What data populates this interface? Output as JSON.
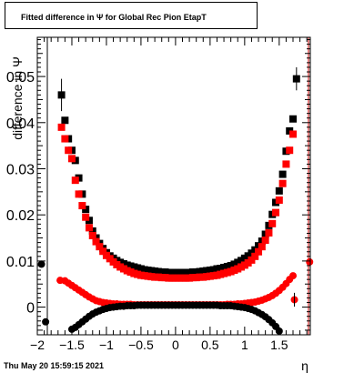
{
  "title": "Fitted difference in  Ψ  for Global Rec Pion EtapT",
  "timestamp": "Thu May 20 15:59:15 2021",
  "colors": {
    "black_series": "#000000",
    "red_series": "#ff0000",
    "right_line": "#cc0000"
  },
  "chart_data": {
    "type": "scatter",
    "title": "Fitted difference in  Ψ  for Global Rec Pion EtapT",
    "xlabel": "η",
    "ylabel": "difference in  Ψ",
    "xlim": [
      -2.0,
      1.95
    ],
    "ylim": [
      -0.006,
      0.0585
    ],
    "x_ticks": [
      -2,
      -1.5,
      -1,
      -0.5,
      0,
      0.5,
      1,
      1.5
    ],
    "x_tick_labels": [
      "−2",
      "−1.5",
      "−1",
      "−0.5",
      "0",
      "0.5",
      "1",
      "1.5"
    ],
    "y_ticks": [
      0,
      0.01,
      0.02,
      0.03,
      0.04,
      0.05
    ],
    "y_tick_labels": [
      "0",
      "0.01",
      "0.02",
      "0.03",
      "0.04",
      "0.05"
    ],
    "legend": "none",
    "series": [
      {
        "color": "#000000",
        "marker": "square",
        "points": [
          [
            -1.65,
            0.046
          ],
          [
            -1.6,
            0.0405
          ],
          [
            -1.55,
            0.0365
          ],
          [
            -1.5,
            0.034
          ],
          [
            -1.45,
            0.0318
          ],
          [
            -1.4,
            0.028
          ],
          [
            -1.35,
            0.0245
          ],
          [
            -1.3,
            0.0212
          ],
          [
            -1.25,
            0.0188
          ],
          [
            -1.2,
            0.0165
          ],
          [
            -1.15,
            0.015
          ],
          [
            -1.1,
            0.0138
          ],
          [
            -1.05,
            0.0127
          ],
          [
            -1.0,
            0.0118
          ],
          [
            -0.95,
            0.0111
          ],
          [
            -0.9,
            0.0106
          ],
          [
            -0.85,
            0.0101
          ],
          [
            -0.8,
            0.0097
          ],
          [
            -0.75,
            0.0094
          ],
          [
            -0.7,
            0.0091
          ],
          [
            -0.65,
            0.0089
          ],
          [
            -0.6,
            0.0087
          ],
          [
            -0.55,
            0.0085
          ],
          [
            -0.5,
            0.0083
          ],
          [
            -0.45,
            0.0081
          ],
          [
            -0.4,
            0.008
          ],
          [
            -0.35,
            0.0079
          ],
          [
            -0.3,
            0.0078
          ],
          [
            -0.25,
            0.0077
          ],
          [
            -0.2,
            0.0076
          ],
          [
            -0.15,
            0.0076
          ],
          [
            -0.1,
            0.0075
          ],
          [
            -0.05,
            0.0075
          ],
          [
            0.0,
            0.0075
          ],
          [
            0.05,
            0.0075
          ],
          [
            0.1,
            0.0075
          ],
          [
            0.15,
            0.0075
          ],
          [
            0.2,
            0.0075
          ],
          [
            0.25,
            0.0076
          ],
          [
            0.3,
            0.0076
          ],
          [
            0.35,
            0.0077
          ],
          [
            0.4,
            0.0078
          ],
          [
            0.45,
            0.0079
          ],
          [
            0.5,
            0.008
          ],
          [
            0.55,
            0.0081
          ],
          [
            0.6,
            0.0083
          ],
          [
            0.65,
            0.0084
          ],
          [
            0.7,
            0.0086
          ],
          [
            0.75,
            0.0088
          ],
          [
            0.8,
            0.009
          ],
          [
            0.85,
            0.0093
          ],
          [
            0.9,
            0.0097
          ],
          [
            0.95,
            0.0101
          ],
          [
            1.0,
            0.0106
          ],
          [
            1.05,
            0.0111
          ],
          [
            1.1,
            0.0117
          ],
          [
            1.15,
            0.0124
          ],
          [
            1.2,
            0.0133
          ],
          [
            1.25,
            0.0143
          ],
          [
            1.3,
            0.0158
          ],
          [
            1.35,
            0.0177
          ],
          [
            1.4,
            0.0201
          ],
          [
            1.45,
            0.0227
          ],
          [
            1.5,
            0.0252
          ],
          [
            1.55,
            0.0288
          ],
          [
            1.6,
            0.0338
          ],
          [
            1.65,
            0.0382
          ],
          [
            1.7,
            0.0408
          ],
          [
            1.75,
            0.0495
          ]
        ]
      },
      {
        "color": "#ff0000",
        "marker": "square",
        "points": [
          [
            -1.65,
            0.039
          ],
          [
            -1.6,
            0.0365
          ],
          [
            -1.55,
            0.034
          ],
          [
            -1.5,
            0.0322
          ],
          [
            -1.45,
            0.0275
          ],
          [
            -1.4,
            0.0245
          ],
          [
            -1.35,
            0.022
          ],
          [
            -1.3,
            0.0195
          ],
          [
            -1.25,
            0.0172
          ],
          [
            -1.2,
            0.0155
          ],
          [
            -1.15,
            0.0142
          ],
          [
            -1.1,
            0.0131
          ],
          [
            -1.05,
            0.0121
          ],
          [
            -1.0,
            0.0112
          ],
          [
            -0.95,
            0.0105
          ],
          [
            -0.9,
            0.0098
          ],
          [
            -0.85,
            0.0092
          ],
          [
            -0.8,
            0.0087
          ],
          [
            -0.75,
            0.0083
          ],
          [
            -0.7,
            0.0079
          ],
          [
            -0.65,
            0.0076
          ],
          [
            -0.6,
            0.0073
          ],
          [
            -0.55,
            0.0071
          ],
          [
            -0.5,
            0.0069
          ],
          [
            -0.45,
            0.0068
          ],
          [
            -0.4,
            0.0067
          ],
          [
            -0.35,
            0.0066
          ],
          [
            -0.3,
            0.0065
          ],
          [
            -0.25,
            0.0065
          ],
          [
            -0.2,
            0.0064
          ],
          [
            -0.15,
            0.0064
          ],
          [
            -0.1,
            0.0063
          ],
          [
            -0.05,
            0.0063
          ],
          [
            0.0,
            0.0063
          ],
          [
            0.05,
            0.0063
          ],
          [
            0.1,
            0.0063
          ],
          [
            0.15,
            0.0063
          ],
          [
            0.2,
            0.0063
          ],
          [
            0.25,
            0.0064
          ],
          [
            0.3,
            0.0064
          ],
          [
            0.35,
            0.0065
          ],
          [
            0.4,
            0.0065
          ],
          [
            0.45,
            0.0066
          ],
          [
            0.5,
            0.0067
          ],
          [
            0.55,
            0.0068
          ],
          [
            0.6,
            0.0069
          ],
          [
            0.65,
            0.0071
          ],
          [
            0.7,
            0.0073
          ],
          [
            0.75,
            0.0075
          ],
          [
            0.8,
            0.0077
          ],
          [
            0.85,
            0.008
          ],
          [
            0.9,
            0.0083
          ],
          [
            0.95,
            0.0087
          ],
          [
            1.0,
            0.0091
          ],
          [
            1.05,
            0.0096
          ],
          [
            1.1,
            0.0102
          ],
          [
            1.15,
            0.011
          ],
          [
            1.2,
            0.012
          ],
          [
            1.25,
            0.0131
          ],
          [
            1.3,
            0.0145
          ],
          [
            1.35,
            0.0161
          ],
          [
            1.4,
            0.0181
          ],
          [
            1.45,
            0.0205
          ],
          [
            1.5,
            0.0232
          ],
          [
            1.55,
            0.0268
          ],
          [
            1.6,
            0.031
          ],
          [
            1.65,
            0.034
          ],
          [
            1.7,
            0.0375
          ]
        ]
      },
      {
        "color": "#ff0000",
        "marker": "circle",
        "points": [
          [
            -1.67,
            0.0058
          ],
          [
            -1.6,
            0.0057
          ],
          [
            -1.55,
            0.0052
          ],
          [
            -1.5,
            0.0047
          ],
          [
            -1.45,
            0.0042
          ],
          [
            -1.4,
            0.0037
          ],
          [
            -1.35,
            0.0032
          ],
          [
            -1.3,
            0.0027
          ],
          [
            -1.25,
            0.0022
          ],
          [
            -1.2,
            0.0018
          ],
          [
            -1.15,
            0.0014
          ],
          [
            -1.1,
            0.0012
          ],
          [
            -1.05,
            0.001
          ],
          [
            -1.0,
            0.0009
          ],
          [
            -0.95,
            0.0008
          ],
          [
            -0.9,
            0.0007
          ],
          [
            -0.85,
            0.0007
          ],
          [
            -0.8,
            0.0006
          ],
          [
            -0.75,
            0.0006
          ],
          [
            -0.7,
            0.0006
          ],
          [
            -0.65,
            0.0006
          ],
          [
            -0.6,
            0.0005
          ],
          [
            -0.55,
            0.0005
          ],
          [
            -0.5,
            0.0005
          ],
          [
            -0.45,
            0.0005
          ],
          [
            -0.4,
            0.0005
          ],
          [
            -0.35,
            0.0005
          ],
          [
            -0.3,
            0.0005
          ],
          [
            -0.25,
            0.0005
          ],
          [
            -0.2,
            0.0005
          ],
          [
            -0.15,
            0.0005
          ],
          [
            -0.1,
            0.0005
          ],
          [
            -0.05,
            0.0005
          ],
          [
            0.0,
            0.0005
          ],
          [
            0.05,
            0.0005
          ],
          [
            0.1,
            0.0005
          ],
          [
            0.15,
            0.0005
          ],
          [
            0.2,
            0.0005
          ],
          [
            0.25,
            0.0005
          ],
          [
            0.3,
            0.0005
          ],
          [
            0.35,
            0.0005
          ],
          [
            0.4,
            0.0005
          ],
          [
            0.45,
            0.0005
          ],
          [
            0.5,
            0.0005
          ],
          [
            0.55,
            0.0005
          ],
          [
            0.6,
            0.0005
          ],
          [
            0.65,
            0.0005
          ],
          [
            0.7,
            0.0005
          ],
          [
            0.75,
            0.0006
          ],
          [
            0.8,
            0.0006
          ],
          [
            0.85,
            0.0006
          ],
          [
            0.9,
            0.0007
          ],
          [
            0.95,
            0.0007
          ],
          [
            1.0,
            0.0008
          ],
          [
            1.05,
            0.0009
          ],
          [
            1.1,
            0.001
          ],
          [
            1.15,
            0.0011
          ],
          [
            1.2,
            0.0013
          ],
          [
            1.25,
            0.0015
          ],
          [
            1.3,
            0.0018
          ],
          [
            1.35,
            0.0021
          ],
          [
            1.4,
            0.0025
          ],
          [
            1.45,
            0.003
          ],
          [
            1.5,
            0.0036
          ],
          [
            1.55,
            0.0043
          ],
          [
            1.6,
            0.0051
          ],
          [
            1.65,
            0.006
          ],
          [
            1.7,
            0.0068
          ],
          [
            1.72,
            0.0016
          ],
          [
            1.94,
            0.0098
          ]
        ]
      },
      {
        "color": "#000000",
        "marker": "circle",
        "points": [
          [
            -1.94,
            0.0093
          ],
          [
            -1.88,
            -0.0032
          ],
          [
            -1.5,
            -0.0048
          ],
          [
            -1.45,
            -0.0044
          ],
          [
            -1.4,
            -0.0038
          ],
          [
            -1.35,
            -0.0032
          ],
          [
            -1.3,
            -0.0026
          ],
          [
            -1.25,
            -0.002
          ],
          [
            -1.2,
            -0.0015
          ],
          [
            -1.15,
            -0.0011
          ],
          [
            -1.1,
            -0.0008
          ],
          [
            -1.05,
            -0.0005
          ],
          [
            -1.0,
            -0.0003
          ],
          [
            -0.95,
            -0.0001
          ],
          [
            -0.9,
            0.0
          ],
          [
            -0.85,
            0.0001
          ],
          [
            -0.8,
            0.0002
          ],
          [
            -0.75,
            0.0002
          ],
          [
            -0.7,
            0.0003
          ],
          [
            -0.65,
            0.0003
          ],
          [
            -0.6,
            0.0003
          ],
          [
            -0.55,
            0.0004
          ],
          [
            -0.5,
            0.0004
          ],
          [
            -0.45,
            0.0004
          ],
          [
            -0.4,
            0.0004
          ],
          [
            -0.35,
            0.0004
          ],
          [
            -0.3,
            0.0004
          ],
          [
            -0.25,
            0.0004
          ],
          [
            -0.2,
            0.0004
          ],
          [
            -0.15,
            0.0004
          ],
          [
            -0.1,
            0.0004
          ],
          [
            -0.05,
            0.0004
          ],
          [
            0.0,
            0.0004
          ],
          [
            0.05,
            0.0004
          ],
          [
            0.1,
            0.0004
          ],
          [
            0.15,
            0.0004
          ],
          [
            0.2,
            0.0004
          ],
          [
            0.25,
            0.0004
          ],
          [
            0.3,
            0.0004
          ],
          [
            0.35,
            0.0004
          ],
          [
            0.4,
            0.0004
          ],
          [
            0.45,
            0.0004
          ],
          [
            0.5,
            0.0004
          ],
          [
            0.55,
            0.0004
          ],
          [
            0.6,
            0.0004
          ],
          [
            0.65,
            0.0003
          ],
          [
            0.7,
            0.0003
          ],
          [
            0.75,
            0.0003
          ],
          [
            0.8,
            0.0003
          ],
          [
            0.85,
            0.0002
          ],
          [
            0.9,
            0.0001
          ],
          [
            0.95,
            0.0
          ],
          [
            1.0,
            -0.0001
          ],
          [
            1.05,
            -0.0003
          ],
          [
            1.1,
            -0.0005
          ],
          [
            1.15,
            -0.0008
          ],
          [
            1.2,
            -0.0012
          ],
          [
            1.25,
            -0.0016
          ],
          [
            1.3,
            -0.0021
          ],
          [
            1.35,
            -0.0027
          ],
          [
            1.4,
            -0.0034
          ],
          [
            1.45,
            -0.0042
          ],
          [
            1.5,
            -0.0052
          ]
        ]
      }
    ]
  }
}
